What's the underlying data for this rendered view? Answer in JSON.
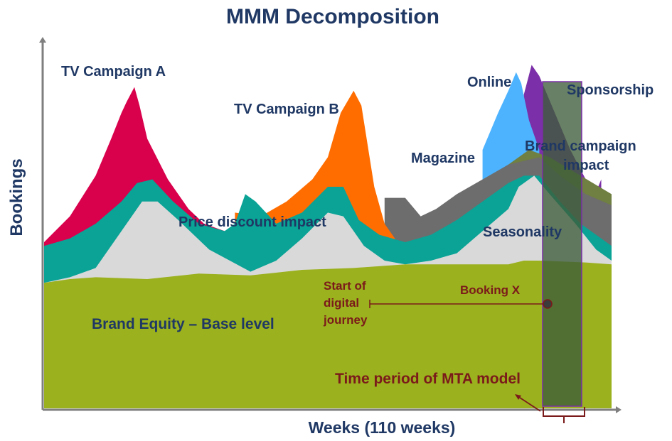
{
  "chart_data": {
    "type": "area",
    "stacked": true,
    "title": "MMM Decomposition",
    "xlabel": "Weeks (110 weeks)",
    "ylabel": "Bookings",
    "x_range": [
      0,
      110
    ],
    "y_range": [
      0,
      100
    ],
    "grid": false,
    "legend": "none (series labelled directly on chart)",
    "series": [
      {
        "name": "Brand Equity – Base level",
        "color": "#9bb11e",
        "points": [
          [
            0,
            34
          ],
          [
            5,
            35
          ],
          [
            10,
            35.5
          ],
          [
            20,
            35
          ],
          [
            30,
            36.5
          ],
          [
            40,
            36
          ],
          [
            50,
            37.5
          ],
          [
            60,
            38
          ],
          [
            70,
            39
          ],
          [
            80,
            39
          ],
          [
            90,
            39
          ],
          [
            93,
            40
          ],
          [
            96,
            40
          ],
          [
            105,
            39.5
          ],
          [
            110,
            39
          ]
        ]
      },
      {
        "name": "Seasonality",
        "color": "#d9d9d9",
        "points": [
          [
            0,
            34
          ],
          [
            5,
            35.5
          ],
          [
            10,
            38
          ],
          [
            15,
            48
          ],
          [
            19,
            56
          ],
          [
            22,
            56
          ],
          [
            26,
            51
          ],
          [
            32,
            43
          ],
          [
            36,
            40
          ],
          [
            40,
            37
          ],
          [
            45,
            40
          ],
          [
            50,
            46
          ],
          [
            55,
            53
          ],
          [
            58,
            52
          ],
          [
            62,
            44
          ],
          [
            66,
            40
          ],
          [
            70,
            39
          ],
          [
            75,
            40
          ],
          [
            80,
            42
          ],
          [
            85,
            48
          ],
          [
            90,
            54
          ],
          [
            92,
            60
          ],
          [
            95,
            63
          ],
          [
            98,
            58
          ],
          [
            103,
            50
          ],
          [
            107,
            43
          ],
          [
            110,
            40
          ]
        ]
      },
      {
        "name": "Price discount impact",
        "color": "#0aa396",
        "points": [
          [
            0,
            44
          ],
          [
            5,
            46
          ],
          [
            10,
            50
          ],
          [
            15,
            56
          ],
          [
            18,
            61
          ],
          [
            21,
            62
          ],
          [
            25,
            56
          ],
          [
            30,
            50
          ],
          [
            35,
            48
          ],
          [
            37,
            50
          ],
          [
            39,
            58
          ],
          [
            41,
            56
          ],
          [
            45,
            50
          ],
          [
            50,
            53
          ],
          [
            55,
            60
          ],
          [
            58,
            60
          ],
          [
            61,
            51
          ],
          [
            65,
            47
          ],
          [
            70,
            45
          ],
          [
            75,
            47
          ],
          [
            80,
            51
          ],
          [
            85,
            56
          ],
          [
            90,
            61
          ],
          [
            93,
            63
          ],
          [
            96,
            63
          ],
          [
            100,
            56
          ],
          [
            104,
            50
          ],
          [
            110,
            44
          ]
        ]
      },
      {
        "name": "TV Campaign A",
        "color": "#d9004c",
        "points": [
          [
            0,
            45
          ],
          [
            5,
            52
          ],
          [
            10,
            63
          ],
          [
            13,
            73
          ],
          [
            15,
            80
          ],
          [
            16,
            83
          ],
          [
            17.5,
            87
          ],
          [
            18.5,
            82
          ],
          [
            20,
            73
          ],
          [
            24,
            62
          ],
          [
            28,
            54
          ],
          [
            31,
            50
          ],
          [
            35,
            48
          ]
        ]
      },
      {
        "name": "TV Campaign B",
        "color": "#ff6d00",
        "points": [
          [
            37,
            53
          ],
          [
            42,
            52
          ],
          [
            47,
            56
          ],
          [
            52,
            62
          ],
          [
            55,
            68
          ],
          [
            57.5,
            80
          ],
          [
            60,
            86
          ],
          [
            61.5,
            82
          ],
          [
            64,
            60
          ],
          [
            66,
            50
          ],
          [
            68,
            46
          ]
        ]
      },
      {
        "name": "Magazine",
        "color": "#6d6d6d",
        "points": [
          [
            66,
            57
          ],
          [
            70,
            57
          ],
          [
            73,
            52
          ],
          [
            76,
            54
          ],
          [
            80,
            58
          ],
          [
            85,
            62
          ],
          [
            90,
            66
          ],
          [
            96,
            68
          ],
          [
            100,
            63
          ],
          [
            105,
            58
          ],
          [
            110,
            55
          ]
        ]
      },
      {
        "name": "Online",
        "color": "#4db3ff",
        "points": [
          [
            85,
            70
          ],
          [
            88,
            80
          ],
          [
            90,
            86
          ],
          [
            91.5,
            91
          ],
          [
            92.5,
            88
          ],
          [
            94,
            78
          ],
          [
            96,
            70
          ]
        ]
      },
      {
        "name": "Sponsorship",
        "color": "#7b2fa8",
        "points": [
          [
            93,
            85
          ],
          [
            94.5,
            93
          ],
          [
            96,
            90
          ],
          [
            99,
            80
          ],
          [
            102,
            70
          ],
          [
            105,
            62
          ],
          [
            106.5,
            57
          ],
          [
            108,
            62
          ]
        ]
      },
      {
        "name": "Brand campaign impact",
        "color": "#707f42",
        "points": [
          [
            82,
            54
          ],
          [
            86,
            62
          ],
          [
            90,
            66
          ],
          [
            94,
            70
          ],
          [
            98,
            68
          ],
          [
            104,
            63
          ],
          [
            110,
            58
          ]
        ]
      }
    ],
    "annotations": [
      {
        "text": "Start of\ndigital\njourney",
        "x": 60,
        "y": 40
      },
      {
        "text": "Booking  X",
        "x": 98,
        "y": 40
      },
      {
        "text": "Time period of MTA model",
        "x_range": [
          92,
          99
        ]
      }
    ]
  },
  "labels": {
    "title": "MMM Decomposition",
    "ylabel": "Bookings",
    "xlabel": "Weeks (110 weeks)",
    "tv_a": "TV Campaign A",
    "tv_b": "TV Campaign B",
    "online": "Online",
    "sponsorship": "Sponsorship",
    "magazine": "Magazine",
    "brand_campaign_1": "Brand campaign",
    "brand_campaign_2": "impact",
    "price_discount": "Price discount impact",
    "seasonality": "Seasonality",
    "base": "Brand Equity – Base level",
    "start_1": "Start of",
    "start_2": "digital",
    "start_3": "journey",
    "booking_x": "Booking  X",
    "mta": "Time period of MTA model"
  },
  "colors": {
    "title": "#1f3864",
    "label": "#1f3864",
    "annotation": "#7b1a1a",
    "axis": "#7f7f7f",
    "highlight_fill": "#3d5c3a",
    "highlight_border": "#7b2fa8"
  }
}
